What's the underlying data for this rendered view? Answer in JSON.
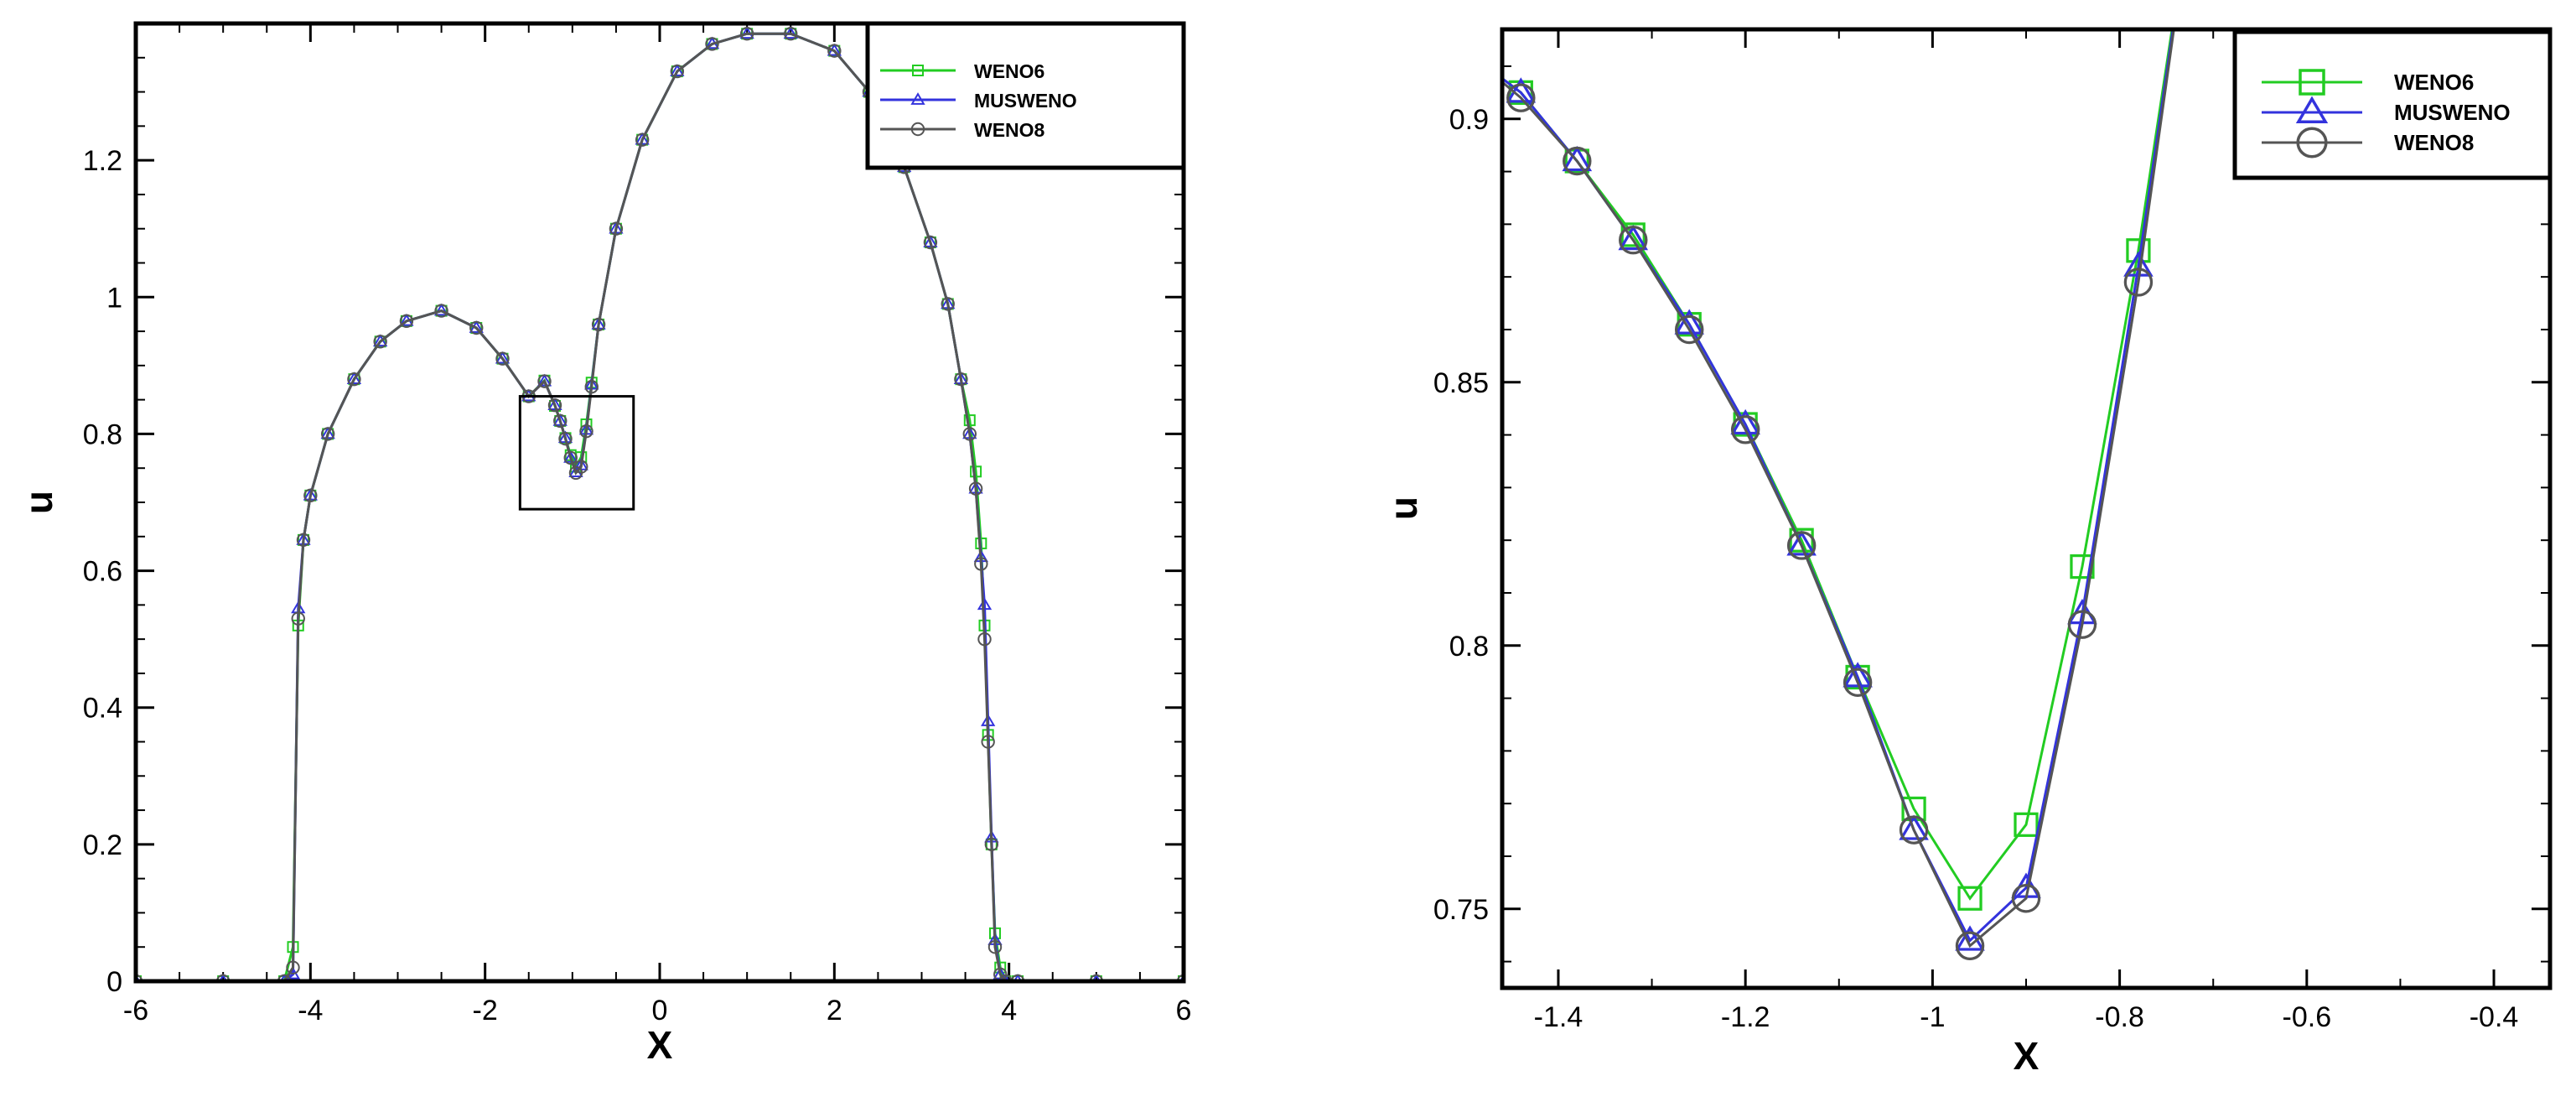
{
  "colors": {
    "WENO6": "#22cc22",
    "MUSWENO": "#3333dd",
    "WENO8": "#555555",
    "axes": "#000000",
    "background": "#ffffff"
  },
  "chart_data": [
    {
      "id": "left",
      "type": "line",
      "xlabel": "X",
      "ylabel": "u",
      "xlim": [
        -6,
        6
      ],
      "ylim": [
        0,
        1.4
      ],
      "xticks": [
        -6,
        -4,
        -2,
        0,
        2,
        4,
        6
      ],
      "xtick_labels": [
        "-6",
        "-4",
        "-2",
        "0",
        "2",
        "4",
        "6"
      ],
      "yticks": [
        0,
        0.2,
        0.4,
        0.6,
        0.8,
        1,
        1.2
      ],
      "ytick_labels": [
        "0",
        "0.2",
        "0.4",
        "0.6",
        "0.8",
        "1",
        "1.2"
      ],
      "legend": {
        "position": "top-right",
        "entries": [
          "WENO6",
          "MUSWENO",
          "WENO8"
        ]
      },
      "zoom_box": {
        "x": [
          -1.6,
          -0.3
        ],
        "y": [
          0.69,
          0.855
        ]
      },
      "grid": false,
      "series": [
        {
          "name": "WENO6",
          "marker": "square",
          "color": "#22cc22",
          "x": [
            -6.0,
            -5.0,
            -4.3,
            -4.2,
            -4.14,
            -4.08,
            -4.0,
            -3.8,
            -3.5,
            -3.2,
            -2.9,
            -2.5,
            -2.1,
            -1.8,
            -1.5,
            -1.32,
            -1.2,
            -1.14,
            -1.08,
            -1.02,
            -0.96,
            -0.9,
            -0.84,
            -0.78,
            -0.7,
            -0.5,
            -0.2,
            0.2,
            0.6,
            1.0,
            1.5,
            2.0,
            2.4,
            2.8,
            3.1,
            3.3,
            3.45,
            3.55,
            3.62,
            3.68,
            3.72,
            3.76,
            3.8,
            3.84,
            3.9,
            3.96,
            4.1,
            5.0,
            6.0
          ],
          "y": [
            0.0,
            0.0,
            0.0,
            0.05,
            0.52,
            0.645,
            0.71,
            0.8,
            0.88,
            0.935,
            0.965,
            0.98,
            0.955,
            0.91,
            0.855,
            0.878,
            0.841,
            0.819,
            0.794,
            0.769,
            0.752,
            0.766,
            0.814,
            0.875,
            0.96,
            1.1,
            1.23,
            1.33,
            1.37,
            1.385,
            1.385,
            1.36,
            1.3,
            1.19,
            1.08,
            0.99,
            0.88,
            0.82,
            0.745,
            0.64,
            0.52,
            0.36,
            0.2,
            0.07,
            0.02,
            0.0,
            0.0,
            0.0,
            0.0
          ]
        },
        {
          "name": "MUSWENO",
          "marker": "triangle",
          "color": "#3333dd",
          "x": [
            -6.0,
            -5.0,
            -4.3,
            -4.2,
            -4.14,
            -4.08,
            -4.0,
            -3.8,
            -3.5,
            -3.2,
            -2.9,
            -2.5,
            -2.1,
            -1.8,
            -1.5,
            -1.32,
            -1.2,
            -1.14,
            -1.08,
            -1.02,
            -0.96,
            -0.9,
            -0.84,
            -0.78,
            -0.7,
            -0.5,
            -0.2,
            0.2,
            0.6,
            1.0,
            1.5,
            2.0,
            2.4,
            2.8,
            3.1,
            3.3,
            3.45,
            3.55,
            3.62,
            3.68,
            3.72,
            3.76,
            3.8,
            3.84,
            3.9,
            3.96,
            4.1,
            5.0,
            6.0
          ],
          "y": [
            0.0,
            0.0,
            0.0,
            0.01,
            0.545,
            0.645,
            0.71,
            0.8,
            0.88,
            0.935,
            0.965,
            0.98,
            0.955,
            0.91,
            0.855,
            0.877,
            0.842,
            0.819,
            0.794,
            0.765,
            0.744,
            0.754,
            0.806,
            0.872,
            0.96,
            1.1,
            1.23,
            1.33,
            1.37,
            1.385,
            1.385,
            1.36,
            1.3,
            1.19,
            1.08,
            0.99,
            0.88,
            0.8,
            0.72,
            0.62,
            0.55,
            0.38,
            0.21,
            0.06,
            0.01,
            0.0,
            0.0,
            0.0,
            0.0
          ]
        },
        {
          "name": "WENO8",
          "marker": "circle",
          "color": "#555555",
          "x": [
            -6.0,
            -5.0,
            -4.3,
            -4.2,
            -4.14,
            -4.08,
            -4.0,
            -3.8,
            -3.5,
            -3.2,
            -2.9,
            -2.5,
            -2.1,
            -1.8,
            -1.5,
            -1.32,
            -1.2,
            -1.14,
            -1.08,
            -1.02,
            -0.96,
            -0.9,
            -0.84,
            -0.78,
            -0.7,
            -0.5,
            -0.2,
            0.2,
            0.6,
            1.0,
            1.5,
            2.0,
            2.4,
            2.8,
            3.1,
            3.3,
            3.45,
            3.55,
            3.62,
            3.68,
            3.72,
            3.76,
            3.8,
            3.84,
            3.9,
            3.96,
            4.1,
            5.0,
            6.0
          ],
          "y": [
            0.0,
            0.0,
            0.0,
            0.02,
            0.53,
            0.645,
            0.71,
            0.8,
            0.88,
            0.935,
            0.965,
            0.98,
            0.955,
            0.91,
            0.855,
            0.877,
            0.842,
            0.819,
            0.793,
            0.765,
            0.743,
            0.752,
            0.804,
            0.869,
            0.96,
            1.1,
            1.23,
            1.33,
            1.37,
            1.385,
            1.385,
            1.36,
            1.3,
            1.19,
            1.08,
            0.99,
            0.88,
            0.8,
            0.72,
            0.61,
            0.5,
            0.35,
            0.2,
            0.05,
            0.01,
            0.0,
            0.0,
            0.0,
            0.0
          ]
        }
      ]
    },
    {
      "id": "right",
      "type": "line",
      "xlabel": "X",
      "ylabel": "u",
      "xlim": [
        -1.46,
        -0.34
      ],
      "ylim": [
        0.735,
        0.917
      ],
      "xticks": [
        -1.4,
        -1.2,
        -1,
        -0.8,
        -0.6,
        -0.4
      ],
      "xtick_labels": [
        "-1.4",
        "-1.2",
        "-1",
        "-0.8",
        "-0.6",
        "-0.4"
      ],
      "yticks": [
        0.75,
        0.8,
        0.85,
        0.9
      ],
      "ytick_labels": [
        "0.75",
        "0.8",
        "0.85",
        "0.9"
      ],
      "legend": {
        "position": "top-right",
        "entries": [
          "WENO6",
          "MUSWENO",
          "WENO8"
        ]
      },
      "grid": false,
      "series": [
        {
          "name": "WENO6",
          "marker": "square",
          "color": "#22cc22",
          "x": [
            -1.5,
            -1.44,
            -1.38,
            -1.32,
            -1.26,
            -1.2,
            -1.14,
            -1.08,
            -1.02,
            -0.96,
            -0.9,
            -0.84,
            -0.78,
            -0.72
          ],
          "y": [
            0.913,
            0.905,
            0.892,
            0.878,
            0.861,
            0.842,
            0.82,
            0.794,
            0.769,
            0.752,
            0.766,
            0.815,
            0.875,
            0.945
          ],
          "markers": [
            false,
            true,
            true,
            true,
            true,
            true,
            true,
            true,
            true,
            true,
            true,
            true,
            true,
            false
          ]
        },
        {
          "name": "MUSWENO",
          "marker": "triangle",
          "color": "#3333dd",
          "x": [
            -1.5,
            -1.44,
            -1.38,
            -1.32,
            -1.26,
            -1.2,
            -1.14,
            -1.08,
            -1.02,
            -0.96,
            -0.9,
            -0.84,
            -0.78,
            -0.72
          ],
          "y": [
            0.913,
            0.905,
            0.892,
            0.877,
            0.861,
            0.842,
            0.819,
            0.794,
            0.765,
            0.744,
            0.754,
            0.806,
            0.872,
            0.945
          ],
          "markers": [
            false,
            true,
            true,
            true,
            true,
            true,
            true,
            true,
            true,
            true,
            true,
            true,
            true,
            false
          ]
        },
        {
          "name": "WENO8",
          "marker": "circle",
          "color": "#555555",
          "x": [
            -1.5,
            -1.44,
            -1.38,
            -1.32,
            -1.26,
            -1.2,
            -1.14,
            -1.08,
            -1.02,
            -0.96,
            -0.9,
            -0.84,
            -0.78,
            -0.72
          ],
          "y": [
            0.913,
            0.904,
            0.892,
            0.877,
            0.86,
            0.841,
            0.819,
            0.793,
            0.765,
            0.743,
            0.752,
            0.804,
            0.869,
            0.945
          ],
          "markers": [
            false,
            true,
            true,
            true,
            true,
            true,
            true,
            true,
            true,
            true,
            true,
            true,
            true,
            false
          ]
        }
      ]
    }
  ]
}
